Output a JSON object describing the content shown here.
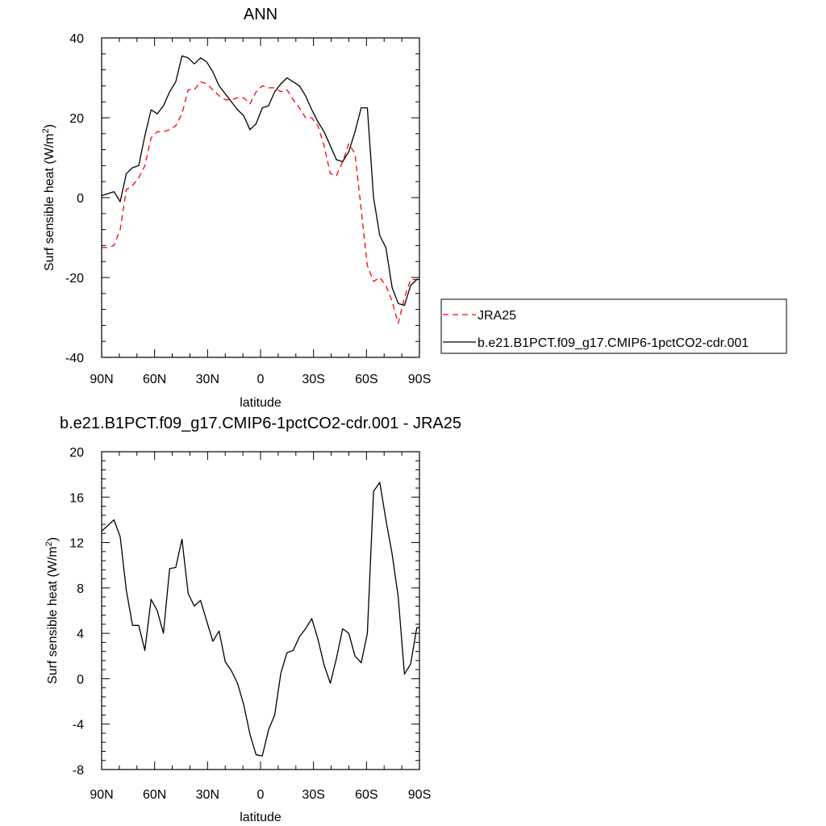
{
  "chart_data": [
    {
      "type": "line",
      "title": "ANN",
      "xlabel": "latitude",
      "ylabel": "Surf sensible heat (W/m",
      "ylabel_sup": "2",
      "ylabel_close": ")",
      "xlim": [
        90,
        -90
      ],
      "ylim": [
        -40,
        40
      ],
      "x_ticks": [
        90,
        60,
        30,
        0,
        -30,
        -60,
        -90
      ],
      "x_tick_labels": [
        "90N",
        "60N",
        "30N",
        "0",
        "30S",
        "60S",
        "90S"
      ],
      "y_ticks": [
        -40,
        -20,
        0,
        20,
        40
      ],
      "y_tick_labels": [
        "-40",
        "-20",
        "0",
        "20",
        "40"
      ],
      "legend_position": "right",
      "series": [
        {
          "name": "JRA25",
          "color": "#ff0000",
          "style": "dashed",
          "x": [
            90,
            86.5,
            83,
            79.5,
            76,
            72.5,
            69,
            65.5,
            62,
            58.5,
            55,
            51.5,
            48,
            44.5,
            41,
            37.5,
            34,
            30.5,
            27,
            23.5,
            20,
            16.5,
            13,
            9.5,
            6,
            2.5,
            -1,
            -4.5,
            -8,
            -11.5,
            -15,
            -18.5,
            -22,
            -25.5,
            -29,
            -32.5,
            -36,
            -39.5,
            -43,
            -46.5,
            -50,
            -53.5,
            -57,
            -60.5,
            -64,
            -67.5,
            -71,
            -74.5,
            -78,
            -81.5,
            -85,
            -88.5,
            -90
          ],
          "y": [
            -12.5,
            -12.5,
            -12,
            -8,
            2,
            3,
            5,
            8,
            15,
            16.5,
            16.5,
            17,
            18,
            21,
            27,
            27,
            29,
            28.5,
            27,
            25.5,
            24.5,
            24.5,
            25,
            25,
            23.5,
            26.5,
            28,
            27.5,
            27.5,
            26.5,
            27,
            24.5,
            22.5,
            20,
            20,
            18,
            13,
            6,
            5.5,
            9,
            13.5,
            11,
            -3,
            -17,
            -21,
            -20,
            -22,
            -26,
            -31.5,
            -25,
            -20.5,
            -20.5,
            -20.5
          ]
        },
        {
          "name": "b.e21.B1PCT.f09_g17.CMIP6-1pctCO2-cdr.001",
          "color": "#000000",
          "style": "solid",
          "x": [
            90,
            86.5,
            83,
            79.5,
            76,
            72.5,
            69,
            65.5,
            62,
            58.5,
            55,
            51.5,
            48,
            44.5,
            41,
            37.5,
            34,
            30.5,
            27,
            23.5,
            20,
            16.5,
            13,
            9.5,
            6,
            2.5,
            -1,
            -4.5,
            -8,
            -11.5,
            -15,
            -18.5,
            -22,
            -25.5,
            -29,
            -32.5,
            -36,
            -39.5,
            -43,
            -46.5,
            -50,
            -53.5,
            -57,
            -60.5,
            -64,
            -67.5,
            -71,
            -74.5,
            -78,
            -81.5,
            -85,
            -88.5,
            -90
          ],
          "y": [
            0.5,
            1,
            1.5,
            -1,
            6,
            7.5,
            8,
            15.5,
            22,
            21,
            23,
            26.5,
            29,
            35.5,
            35,
            33.5,
            35,
            34,
            31.5,
            28,
            26,
            24,
            22,
            20.5,
            17,
            18.5,
            22.5,
            23,
            26.5,
            28.5,
            30,
            29,
            28,
            25.5,
            22,
            19,
            16.5,
            13,
            9.5,
            9,
            11.5,
            16.5,
            22.5,
            22.5,
            0,
            -9.5,
            -12.5,
            -22.5,
            -26.5,
            -27,
            -22,
            -20.5,
            -20.5
          ]
        }
      ]
    },
    {
      "type": "line",
      "title": "b.e21.B1PCT.f09_g17.CMIP6-1pctCO2-cdr.001 - JRA25",
      "xlabel": "latitude",
      "ylabel": "Surf sensible heat (W/m",
      "ylabel_sup": "2",
      "ylabel_close": ")",
      "xlim": [
        90,
        -90
      ],
      "ylim": [
        -8,
        20
      ],
      "x_ticks": [
        90,
        60,
        30,
        0,
        -30,
        -60,
        -90
      ],
      "x_tick_labels": [
        "90N",
        "60N",
        "30N",
        "0",
        "30S",
        "60S",
        "90S"
      ],
      "y_ticks": [
        -8,
        -4,
        0,
        4,
        8,
        12,
        16,
        20
      ],
      "y_tick_labels": [
        "-8",
        "-4",
        "0",
        "4",
        "8",
        "12",
        "16",
        "20"
      ],
      "series": [
        {
          "color": "#000000",
          "style": "solid",
          "x": [
            90,
            86.5,
            83,
            79.5,
            76,
            72.5,
            69,
            65.5,
            62,
            58.5,
            55,
            51.5,
            48,
            44.5,
            41,
            37.5,
            34,
            30.5,
            27,
            23.5,
            20,
            16.5,
            13,
            9.5,
            6,
            2.5,
            -1,
            -4.5,
            -8,
            -11.5,
            -15,
            -18.5,
            -22,
            -25.5,
            -29,
            -32.5,
            -36,
            -39.5,
            -43,
            -46.5,
            -50,
            -53.5,
            -57,
            -60.5,
            -64,
            -67.5,
            -71,
            -74.5,
            -78,
            -81.5,
            -85,
            -88.5,
            -90
          ],
          "y": [
            13,
            13.5,
            14,
            12.5,
            7.8,
            4.7,
            4.7,
            2.5,
            7,
            6,
            4,
            9.7,
            9.8,
            12.3,
            7.5,
            6.4,
            6.9,
            5.1,
            3.3,
            4.2,
            1.5,
            0.7,
            -0.4,
            -2.3,
            -4.9,
            -6.7,
            -6.8,
            -4.5,
            -3.2,
            0.5,
            2.3,
            2.5,
            3.7,
            4.4,
            5.3,
            3.5,
            1.2,
            -0.4,
            1.8,
            4.4,
            4,
            2,
            1.4,
            4,
            16.5,
            17.3,
            14,
            11,
            7.2,
            0.4,
            1.3,
            4.5,
            4.5
          ]
        }
      ]
    }
  ]
}
